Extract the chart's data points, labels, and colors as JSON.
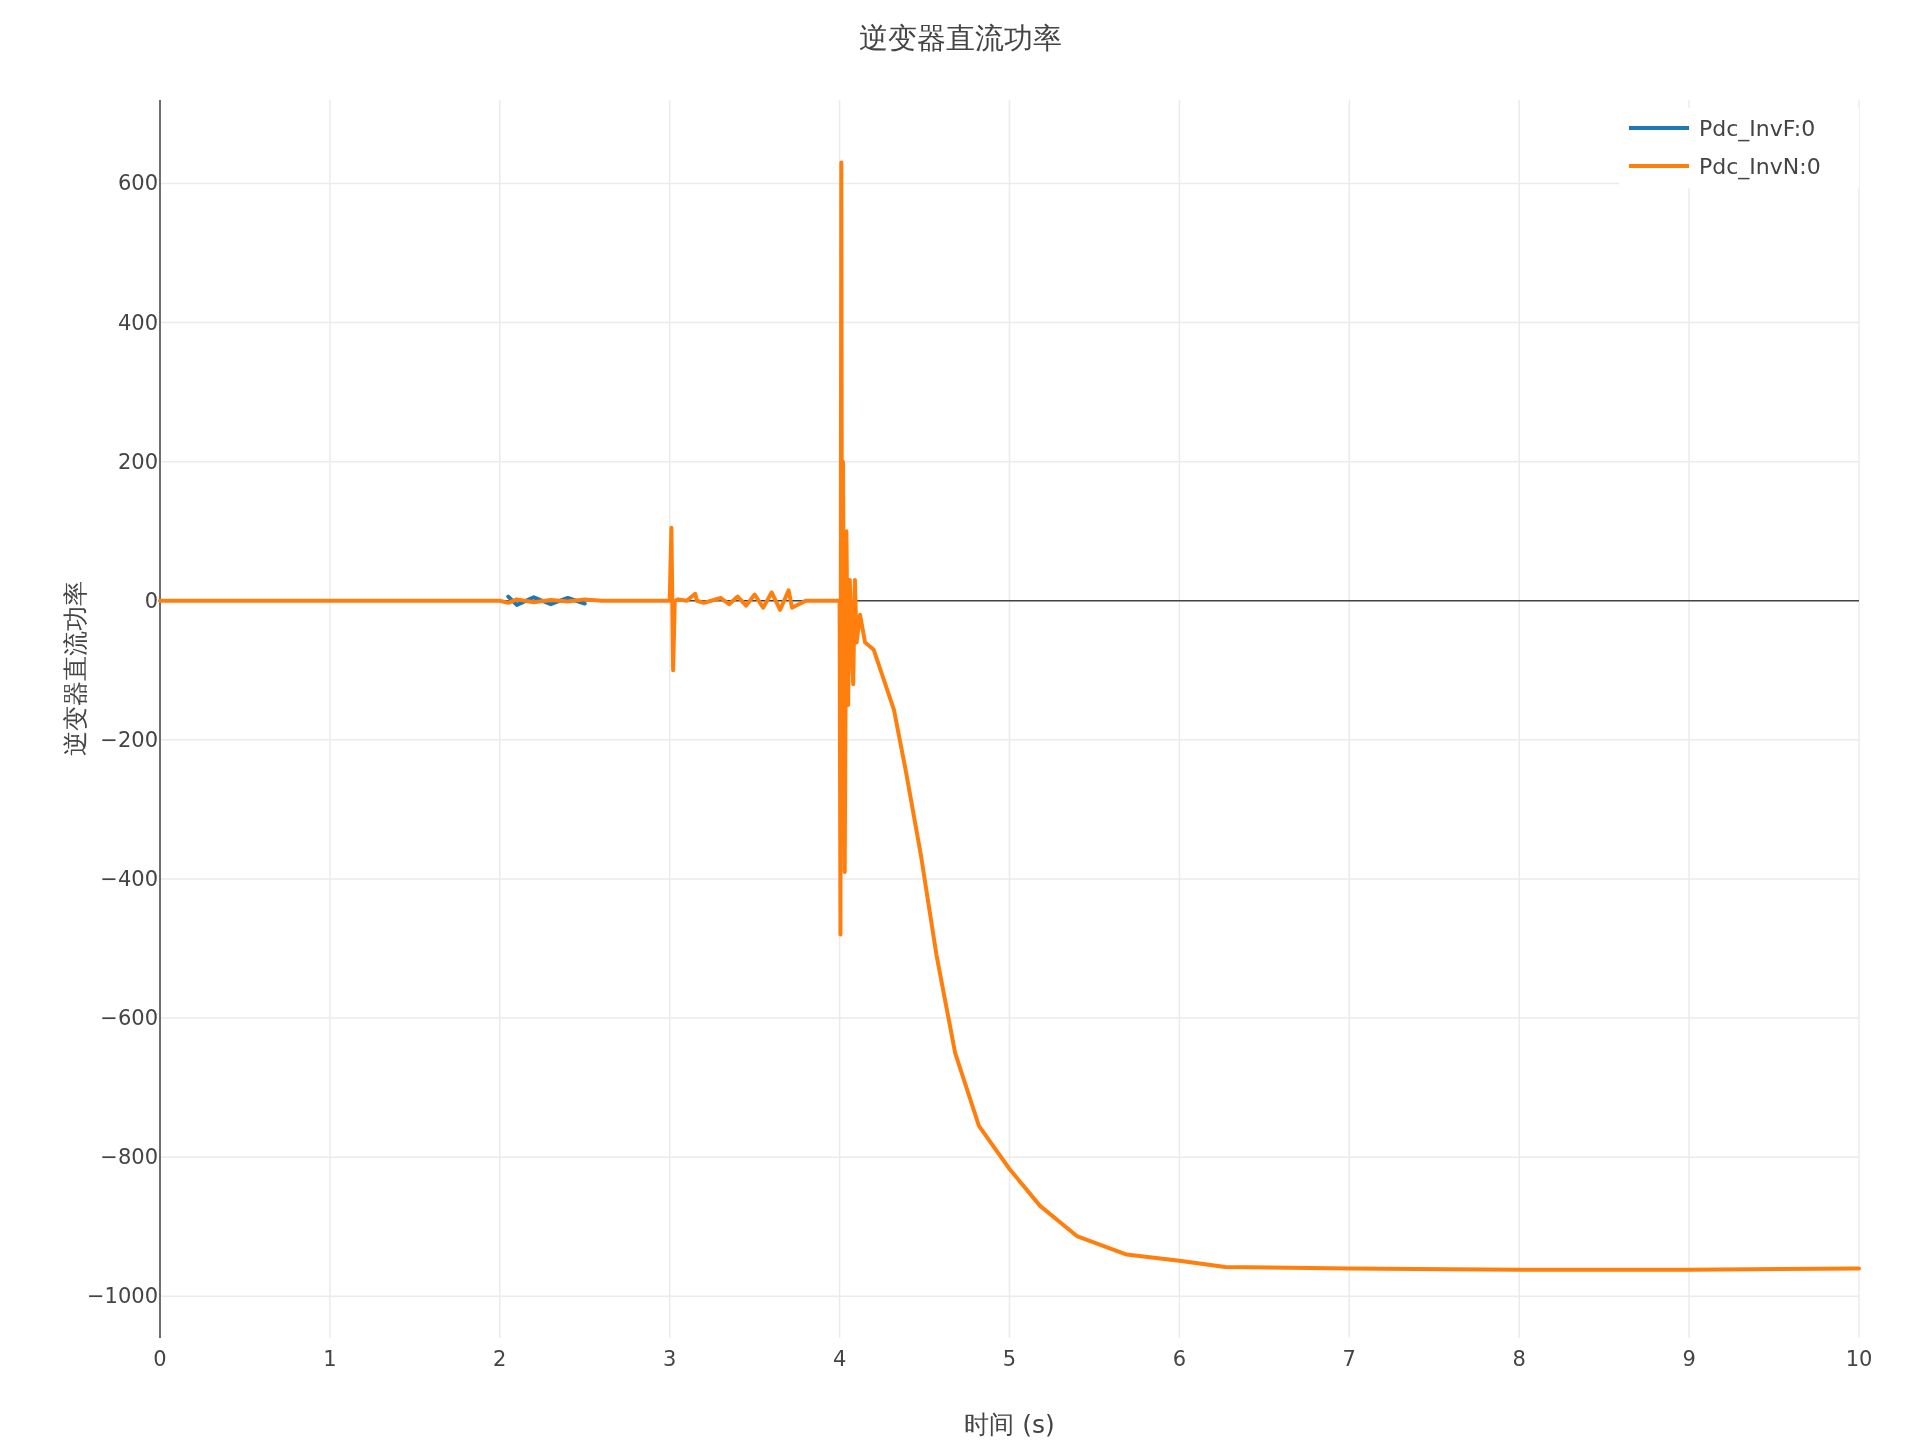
{
  "chart_data": {
    "type": "line",
    "title": "逆变器直流功率",
    "xlabel": "时间 (s)",
    "ylabel": "逆变器直流功率",
    "x": [
      0,
      1,
      2,
      2.05,
      2.1,
      2.2,
      2.3,
      2.4,
      2.5,
      2.6,
      2.8,
      2.95,
      3.0,
      3.01,
      3.02,
      3.03,
      3.05,
      3.1,
      3.15,
      3.16,
      3.2,
      3.3,
      3.35,
      3.4,
      3.45,
      3.5,
      3.55,
      3.6,
      3.65,
      3.7,
      3.72,
      3.8,
      3.9,
      4.0,
      4.005,
      4.01,
      4.015,
      4.02,
      4.03,
      4.04,
      4.05,
      4.06,
      4.08,
      4.09,
      4.1,
      4.12,
      4.15,
      4.2,
      4.32,
      4.39,
      4.48,
      4.57,
      4.68,
      4.82,
      5.0,
      5.18,
      5.4,
      5.69,
      6.0,
      6.27,
      7.0,
      8.0,
      9.0,
      10.0
    ],
    "series": [
      {
        "name": "Pdc_InvF:0",
        "color": "#1f77b4",
        "values": [
          null,
          null,
          null,
          6,
          -6,
          5,
          -5,
          4,
          -4,
          null,
          null,
          null,
          null,
          null,
          null,
          null,
          null,
          null,
          null,
          null,
          null,
          null,
          null,
          null,
          null,
          null,
          null,
          null,
          null,
          null,
          null,
          null,
          null,
          null,
          null,
          null,
          null,
          null,
          null,
          null,
          null,
          null,
          null,
          null,
          null,
          null,
          null,
          null,
          null,
          null,
          null,
          null,
          null,
          null,
          null,
          null,
          null,
          null,
          null,
          null,
          null,
          null,
          null,
          null
        ]
      },
      {
        "name": "Pdc_InvN:0",
        "color": "#ff7f0e",
        "values": [
          0,
          0,
          0,
          -3,
          2,
          -2,
          1,
          -1,
          2,
          0,
          0,
          0,
          0,
          105,
          -100,
          0,
          2,
          0,
          10,
          0,
          -3,
          4,
          -5,
          6,
          -7,
          9,
          -10,
          12,
          -13,
          15,
          -10,
          0,
          0,
          0,
          -480,
          630,
          -250,
          200,
          -390,
          100,
          -150,
          30,
          -120,
          30,
          -60,
          -20,
          -60,
          -70,
          -157,
          -245,
          -368,
          -509,
          -650,
          -755,
          -817,
          -870,
          -914,
          -940,
          -949,
          -958,
          -960,
          -962,
          -962,
          -960
        ]
      }
    ],
    "xlim": [
      0,
      10
    ],
    "xticks": [
      0,
      1,
      2,
      3,
      4,
      5,
      6,
      7,
      8,
      9,
      10
    ],
    "ylim": [
      -1060,
      720
    ],
    "yticks": [
      {
        "value": -1000,
        "label": "−1000"
      },
      {
        "value": -800,
        "label": "−800"
      },
      {
        "value": -600,
        "label": "−600"
      },
      {
        "value": -400,
        "label": "−400"
      },
      {
        "value": -200,
        "label": "−200"
      },
      0,
      200,
      400,
      600
    ],
    "ref_lines": [
      {
        "axis": "y",
        "value": 0,
        "color": "#444444"
      }
    ],
    "grid": true,
    "legend": "top right"
  }
}
